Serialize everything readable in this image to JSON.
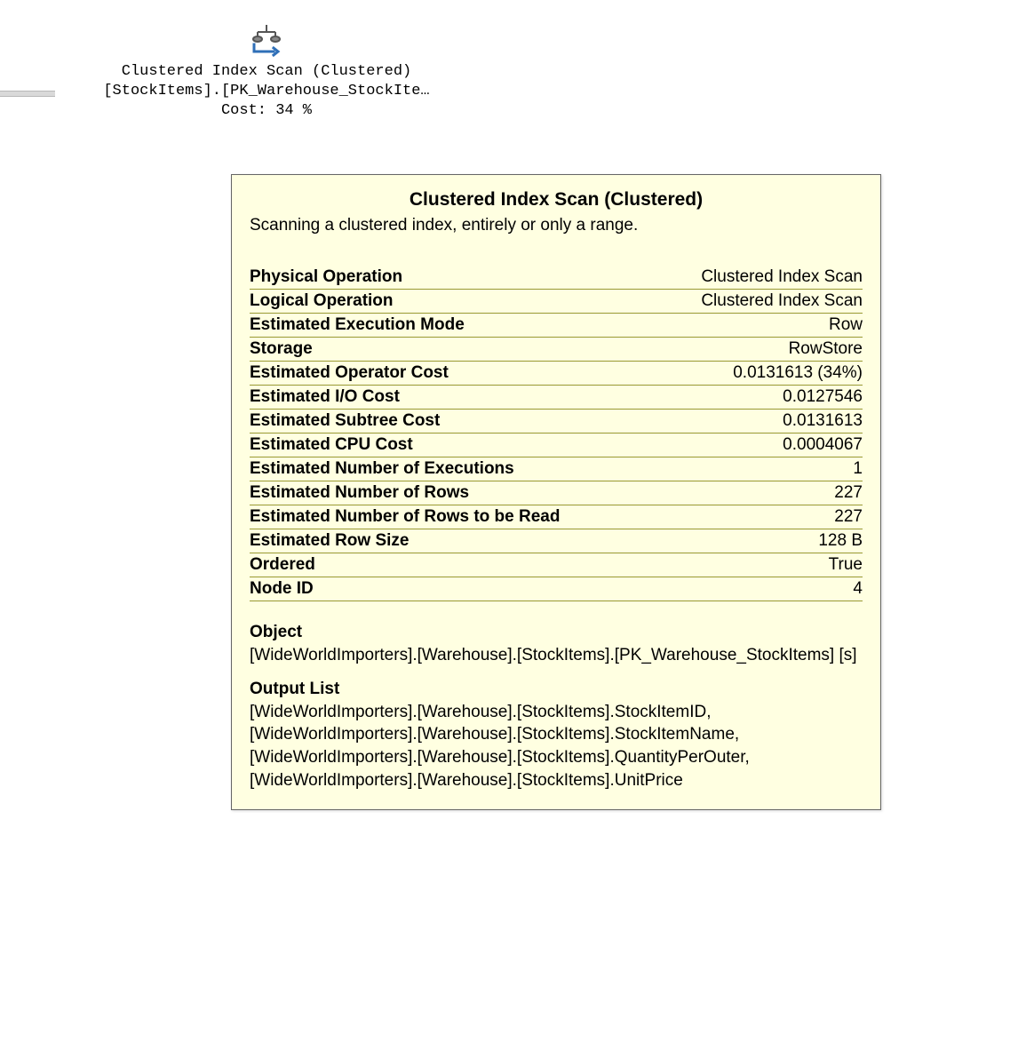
{
  "planNode": {
    "line1": "Clustered Index Scan (Clustered)",
    "line2": "[StockItems].[PK_Warehouse_StockIte…",
    "line3": "Cost: 34 %",
    "iconColors": {
      "bracket": "#2f6fb7",
      "balance": "#555555"
    }
  },
  "tooltip": {
    "title": "Clustered Index Scan (Clustered)",
    "description": "Scanning a clustered index, entirely or only a range.",
    "background": "#ffffe1",
    "border": "#666666",
    "rowDivider": "#999933",
    "textColor": "#000000",
    "properties": [
      {
        "label": "Physical Operation",
        "value": "Clustered Index Scan"
      },
      {
        "label": "Logical Operation",
        "value": "Clustered Index Scan"
      },
      {
        "label": "Estimated Execution Mode",
        "value": "Row"
      },
      {
        "label": "Storage",
        "value": "RowStore"
      },
      {
        "label": "Estimated Operator Cost",
        "value": "0.0131613 (34%)"
      },
      {
        "label": "Estimated I/O Cost",
        "value": "0.0127546"
      },
      {
        "label": "Estimated Subtree Cost",
        "value": "0.0131613"
      },
      {
        "label": "Estimated CPU Cost",
        "value": "0.0004067"
      },
      {
        "label": "Estimated Number of Executions",
        "value": "1"
      },
      {
        "label": "Estimated Number of Rows",
        "value": "227"
      },
      {
        "label": "Estimated Number of Rows to be Read",
        "value": "227"
      },
      {
        "label": "Estimated Row Size",
        "value": "128 B"
      },
      {
        "label": "Ordered",
        "value": "True"
      },
      {
        "label": "Node ID",
        "value": "4"
      }
    ],
    "sections": [
      {
        "label": "Object",
        "body": "[WideWorldImporters].[Warehouse].[StockItems].[PK_Warehouse_StockItems] [s]"
      },
      {
        "label": "Output List",
        "body": "[WideWorldImporters].[Warehouse].[StockItems].StockItemID, [WideWorldImporters].[Warehouse].[StockItems].StockItemName, [WideWorldImporters].[Warehouse].[StockItems].QuantityPerOuter, [WideWorldImporters].[Warehouse].[StockItems].UnitPrice"
      }
    ]
  }
}
